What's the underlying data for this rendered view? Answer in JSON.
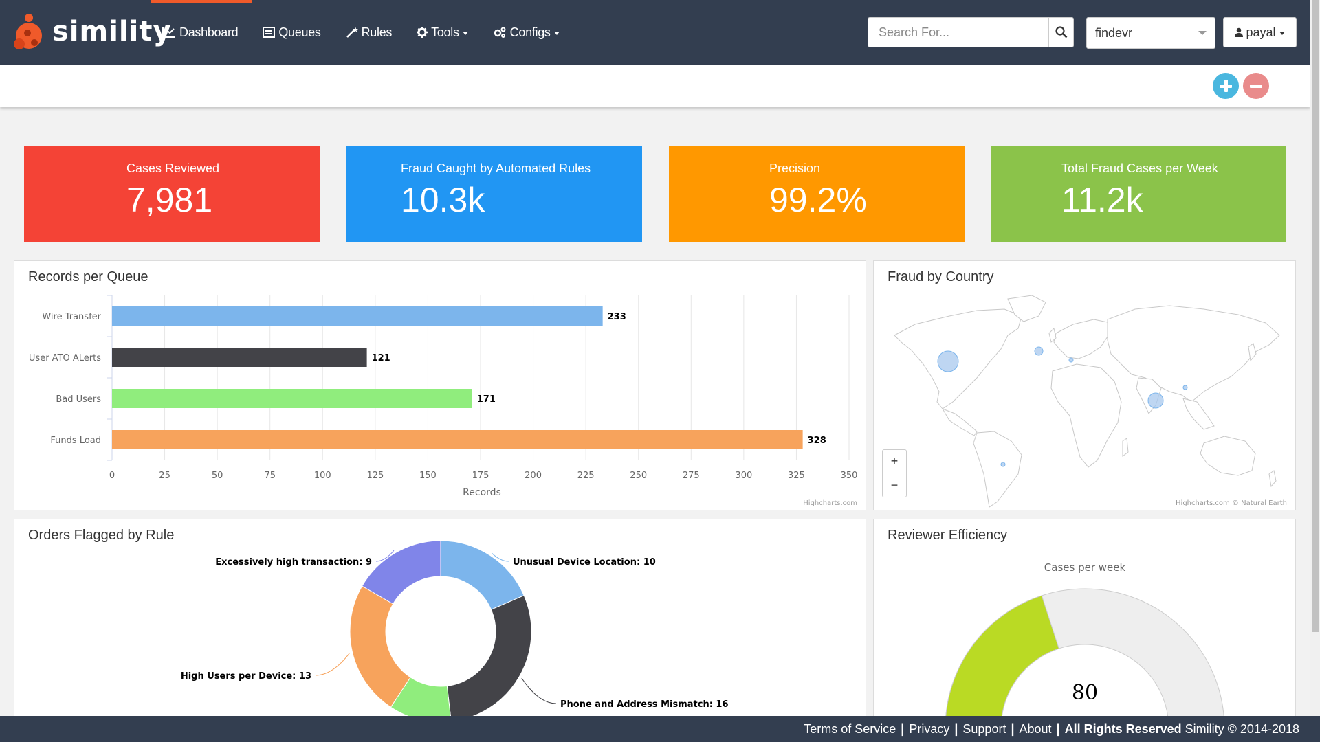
{
  "app": {
    "logo_text": "simility"
  },
  "nav": {
    "items": [
      {
        "label": "Dashboard",
        "icon": "line-chart-icon"
      },
      {
        "label": "Queues",
        "icon": "list-icon"
      },
      {
        "label": "Rules",
        "icon": "magic-wand-icon"
      },
      {
        "label": "Tools",
        "icon": "gear-icon",
        "dropdown": true
      },
      {
        "label": "Configs",
        "icon": "gears-icon",
        "dropdown": true
      }
    ],
    "search_placeholder": "Search For...",
    "org_selected": "findevr",
    "user": "payal"
  },
  "toolbar": {
    "add_icon": "plus-circle-icon",
    "remove_icon": "minus-circle-icon"
  },
  "kpis": [
    {
      "title": "Cases Reviewed",
      "value": "7,981",
      "color": "#f44336"
    },
    {
      "title": "Fraud Caught by Automated Rules",
      "value": "10.3k",
      "color": "#2196f3"
    },
    {
      "title": "Precision",
      "value": "99.2%",
      "color": "#ff9800"
    },
    {
      "title": "Total Fraud Cases per Week",
      "value": "11.2k",
      "color": "#8bc34a"
    }
  ],
  "panels": {
    "records_title": "Records per Queue",
    "country_title": "Fraud by Country",
    "orders_title": "Orders Flagged by Rule",
    "efficiency_title": "Reviewer Efficiency",
    "highcharts_credit": "Highcharts.com",
    "map_credit": "Highcharts.com © Natural Earth",
    "zoom_in": "+",
    "zoom_out": "−"
  },
  "chart_data": [
    {
      "type": "bar",
      "title": "Records per Queue",
      "categories": [
        "Wire Transfer",
        "User ATO ALerts",
        "Bad Users",
        "Funds Load"
      ],
      "values": [
        233,
        121,
        171,
        328
      ],
      "colors": [
        "#7cb5ec",
        "#434348",
        "#90ed7d",
        "#f7a35c"
      ],
      "xlabel": "Records",
      "xlim": [
        0,
        350
      ],
      "ticks": [
        0,
        25,
        50,
        75,
        100,
        125,
        150,
        175,
        200,
        225,
        250,
        275,
        300,
        325,
        350
      ],
      "grid": true
    },
    {
      "type": "pie",
      "title": "Orders Flagged by Rule",
      "donut": true,
      "slices": [
        {
          "label": "Unusual Device Location",
          "value": 10,
          "color": "#7cb5ec"
        },
        {
          "label": "Phone and Address Mismatch",
          "value": 16,
          "color": "#434348"
        },
        {
          "label": "",
          "value": 6,
          "color": "#90ed7d"
        },
        {
          "label": "High Users per Device",
          "value": 13,
          "color": "#f7a35c"
        },
        {
          "label": "Excessively high transaction",
          "value": 9,
          "color": "#8085e9"
        }
      ]
    },
    {
      "type": "gauge",
      "title": "Reviewer Efficiency",
      "subtitle": "Cases per week",
      "value": 80,
      "max": 200,
      "color": "#bada24"
    }
  ],
  "footer": {
    "links": [
      "Terms of Service",
      "Privacy",
      "Support",
      "About"
    ],
    "rights_bold": "All Rights Reserved",
    "rights_rest": "Simility © 2014-2018"
  }
}
